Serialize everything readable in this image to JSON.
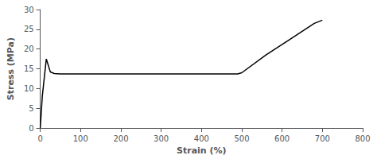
{
  "chart_data": {
    "type": "line",
    "x": [
      0,
      5,
      15,
      25,
      35,
      50,
      100,
      200,
      300,
      400,
      490,
      500,
      560,
      620,
      680,
      700
    ],
    "values": [
      0,
      8,
      17.5,
      14.2,
      13.8,
      13.7,
      13.7,
      13.7,
      13.7,
      13.7,
      13.7,
      14.0,
      18.5,
      22.5,
      26.5,
      27.3
    ],
    "color": "#000000",
    "xlabel": "Strain (%)",
    "ylabel": "Stress (MPa)",
    "xlim": [
      0,
      800
    ],
    "ylim": [
      0,
      30
    ],
    "xticks": [
      0,
      100,
      200,
      300,
      400,
      500,
      600,
      700,
      800
    ],
    "yticks": [
      0,
      5,
      10,
      15,
      20,
      25,
      30
    ],
    "grid": false
  }
}
